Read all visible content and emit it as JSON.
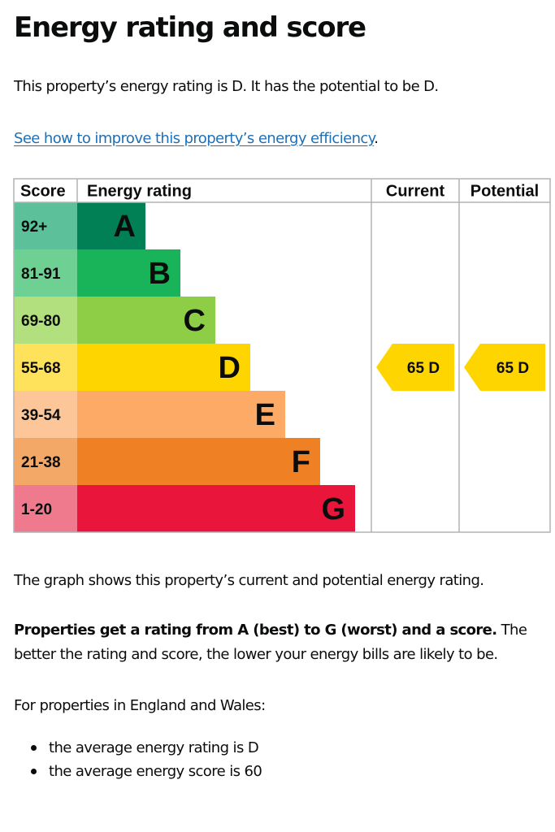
{
  "page": {
    "title": "Energy rating and score",
    "intro": "This property’s energy rating is D. It has the potential to be D.",
    "improve_link": "See how to improve this property’s energy efficiency",
    "improve_link_suffix": ".",
    "graph_description": "The graph shows this property’s current and potential energy rating.",
    "rating_note_bold": "Properties get a rating from A (best) to G (worst) and a score.",
    "rating_note_rest": " The better the rating and score, the lower your energy bills are likely to be.",
    "region_intro": "For properties in England and Wales:",
    "averages": [
      "the average energy rating is D",
      "the average energy score is 60"
    ]
  },
  "chart_data": {
    "type": "bar",
    "title": "",
    "headers": {
      "score": "Score",
      "rating": "Energy rating",
      "current": "Current",
      "potential": "Potential"
    },
    "bands": [
      {
        "letter": "A",
        "range": "92+",
        "color": "#008054",
        "label_bg": "#5cc19a"
      },
      {
        "letter": "B",
        "range": "81-91",
        "color": "#19b459",
        "label_bg": "#6ed193"
      },
      {
        "letter": "C",
        "range": "69-80",
        "color": "#8dce46",
        "label_bg": "#b3e07f"
      },
      {
        "letter": "D",
        "range": "55-68",
        "color": "#ffd500",
        "label_bg": "#ffe25c"
      },
      {
        "letter": "E",
        "range": "39-54",
        "color": "#fcaa65",
        "label_bg": "#fdc698"
      },
      {
        "letter": "F",
        "range": "21-38",
        "color": "#ef8023",
        "label_bg": "#f4a868"
      },
      {
        "letter": "G",
        "range": "1-20",
        "color": "#e9153b",
        "label_bg": "#f07a8d"
      }
    ],
    "current": {
      "score": 65,
      "band": "D",
      "label": "65 D"
    },
    "potential": {
      "score": 65,
      "band": "D",
      "label": "65 D"
    },
    "colors": {
      "grid": "#b1b4b6",
      "text": "#0b0c0c",
      "link": "#1d70b8"
    }
  }
}
